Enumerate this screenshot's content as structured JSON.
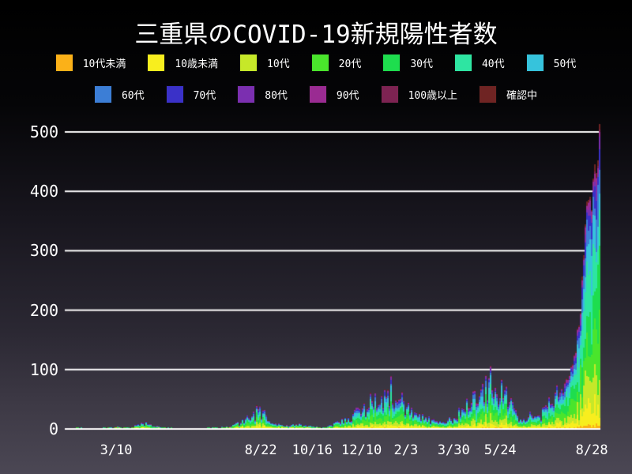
{
  "page": {
    "title": "三重県のCOVID-19新規陽性者数"
  },
  "style": {
    "background_top": "#000000",
    "background_bottom": "#4b4754",
    "grid_color": "#ffffff",
    "text_color": "#ffffff"
  },
  "chart_data": {
    "type": "bar",
    "stacked": true,
    "title": "三重県のCOVID-19新規陽性者数",
    "xlabel": "",
    "ylabel": "",
    "ylim": [
      0,
      500
    ],
    "grid": true,
    "legend_position": "top",
    "legend_rows": [
      7,
      6
    ],
    "yticks": [
      "0",
      "100",
      "200",
      "300",
      "400",
      "500"
    ],
    "xticks": [
      {
        "label": "3/10",
        "pos": 0.096
      },
      {
        "label": "8/22",
        "pos": 0.366
      },
      {
        "label": "10/16",
        "pos": 0.462
      },
      {
        "label": "12/10",
        "pos": 0.554
      },
      {
        "label": "2/3",
        "pos": 0.637
      },
      {
        "label": "3/30",
        "pos": 0.726
      },
      {
        "label": "5/24",
        "pos": 0.813
      },
      {
        "label": "8/28",
        "pos": 0.984
      }
    ],
    "series": [
      {
        "name": "10代未満",
        "color": "#fbb118",
        "share": 0.01
      },
      {
        "name": "10歳未満",
        "color": "#f8ee1e",
        "share": 0.075
      },
      {
        "name": "10代",
        "color": "#c6e829",
        "share": 0.105
      },
      {
        "name": "20代",
        "color": "#4ae52c",
        "share": 0.185
      },
      {
        "name": "30代",
        "color": "#1edd4e",
        "share": 0.155
      },
      {
        "name": "40代",
        "color": "#2ee5a2",
        "share": 0.145
      },
      {
        "name": "50代",
        "color": "#36c3dc",
        "share": 0.115
      },
      {
        "name": "60代",
        "color": "#3c7ed6",
        "share": 0.083
      },
      {
        "name": "70代",
        "color": "#3a31c8",
        "share": 0.05
      },
      {
        "name": "80代",
        "color": "#7b2fb0",
        "share": 0.033
      },
      {
        "name": "90代",
        "color": "#9a2b92",
        "share": 0.022
      },
      {
        "name": "100歳以上",
        "color": "#7d2352",
        "share": 0.007
      },
      {
        "name": "確認中",
        "color": "#6f2423",
        "share": 0.015
      }
    ],
    "daily_total_envelope": {
      "x_axis": "fraction of time axis (early 2020 → 2021/8/28)",
      "y_axis": "approx. daily new positive cases (stacked total)",
      "points": [
        [
          0.0,
          0
        ],
        [
          0.02,
          0
        ],
        [
          0.026,
          2
        ],
        [
          0.032,
          0
        ],
        [
          0.06,
          0
        ],
        [
          0.085,
          1
        ],
        [
          0.096,
          2
        ],
        [
          0.11,
          1
        ],
        [
          0.125,
          2
        ],
        [
          0.14,
          6
        ],
        [
          0.15,
          8
        ],
        [
          0.16,
          4
        ],
        [
          0.175,
          2
        ],
        [
          0.19,
          1
        ],
        [
          0.21,
          0
        ],
        [
          0.25,
          0
        ],
        [
          0.275,
          1
        ],
        [
          0.3,
          2
        ],
        [
          0.315,
          5
        ],
        [
          0.33,
          10
        ],
        [
          0.345,
          18
        ],
        [
          0.357,
          26
        ],
        [
          0.366,
          28
        ],
        [
          0.375,
          18
        ],
        [
          0.385,
          10
        ],
        [
          0.4,
          6
        ],
        [
          0.415,
          3
        ],
        [
          0.43,
          6
        ],
        [
          0.445,
          4
        ],
        [
          0.458,
          5
        ],
        [
          0.468,
          2
        ],
        [
          0.478,
          0
        ],
        [
          0.49,
          3
        ],
        [
          0.505,
          8
        ],
        [
          0.52,
          14
        ],
        [
          0.535,
          22
        ],
        [
          0.55,
          30
        ],
        [
          0.565,
          38
        ],
        [
          0.58,
          45
        ],
        [
          0.595,
          55
        ],
        [
          0.61,
          62
        ],
        [
          0.62,
          55
        ],
        [
          0.63,
          45
        ],
        [
          0.637,
          35
        ],
        [
          0.648,
          26
        ],
        [
          0.66,
          18
        ],
        [
          0.672,
          24
        ],
        [
          0.683,
          12
        ],
        [
          0.695,
          8
        ],
        [
          0.71,
          12
        ],
        [
          0.726,
          18
        ],
        [
          0.74,
          28
        ],
        [
          0.755,
          40
        ],
        [
          0.768,
          52
        ],
        [
          0.78,
          62
        ],
        [
          0.793,
          72
        ],
        [
          0.803,
          62
        ],
        [
          0.812,
          68
        ],
        [
          0.822,
          52
        ],
        [
          0.832,
          36
        ],
        [
          0.842,
          24
        ],
        [
          0.852,
          15
        ],
        [
          0.862,
          10
        ],
        [
          0.87,
          26
        ],
        [
          0.878,
          14
        ],
        [
          0.887,
          20
        ],
        [
          0.896,
          30
        ],
        [
          0.905,
          38
        ],
        [
          0.914,
          48
        ],
        [
          0.922,
          58
        ],
        [
          0.93,
          72
        ],
        [
          0.937,
          88
        ],
        [
          0.944,
          105
        ],
        [
          0.95,
          130
        ],
        [
          0.956,
          165
        ],
        [
          0.961,
          205
        ],
        [
          0.966,
          255
        ],
        [
          0.97,
          305
        ],
        [
          0.974,
          360
        ],
        [
          0.978,
          420
        ],
        [
          0.981,
          385
        ],
        [
          0.984,
          435
        ],
        [
          0.987,
          405
        ],
        [
          0.99,
          465
        ],
        [
          0.993,
          505
        ],
        [
          0.996,
          480
        ],
        [
          1.0,
          462
        ]
      ],
      "peak_value": 505
    }
  }
}
